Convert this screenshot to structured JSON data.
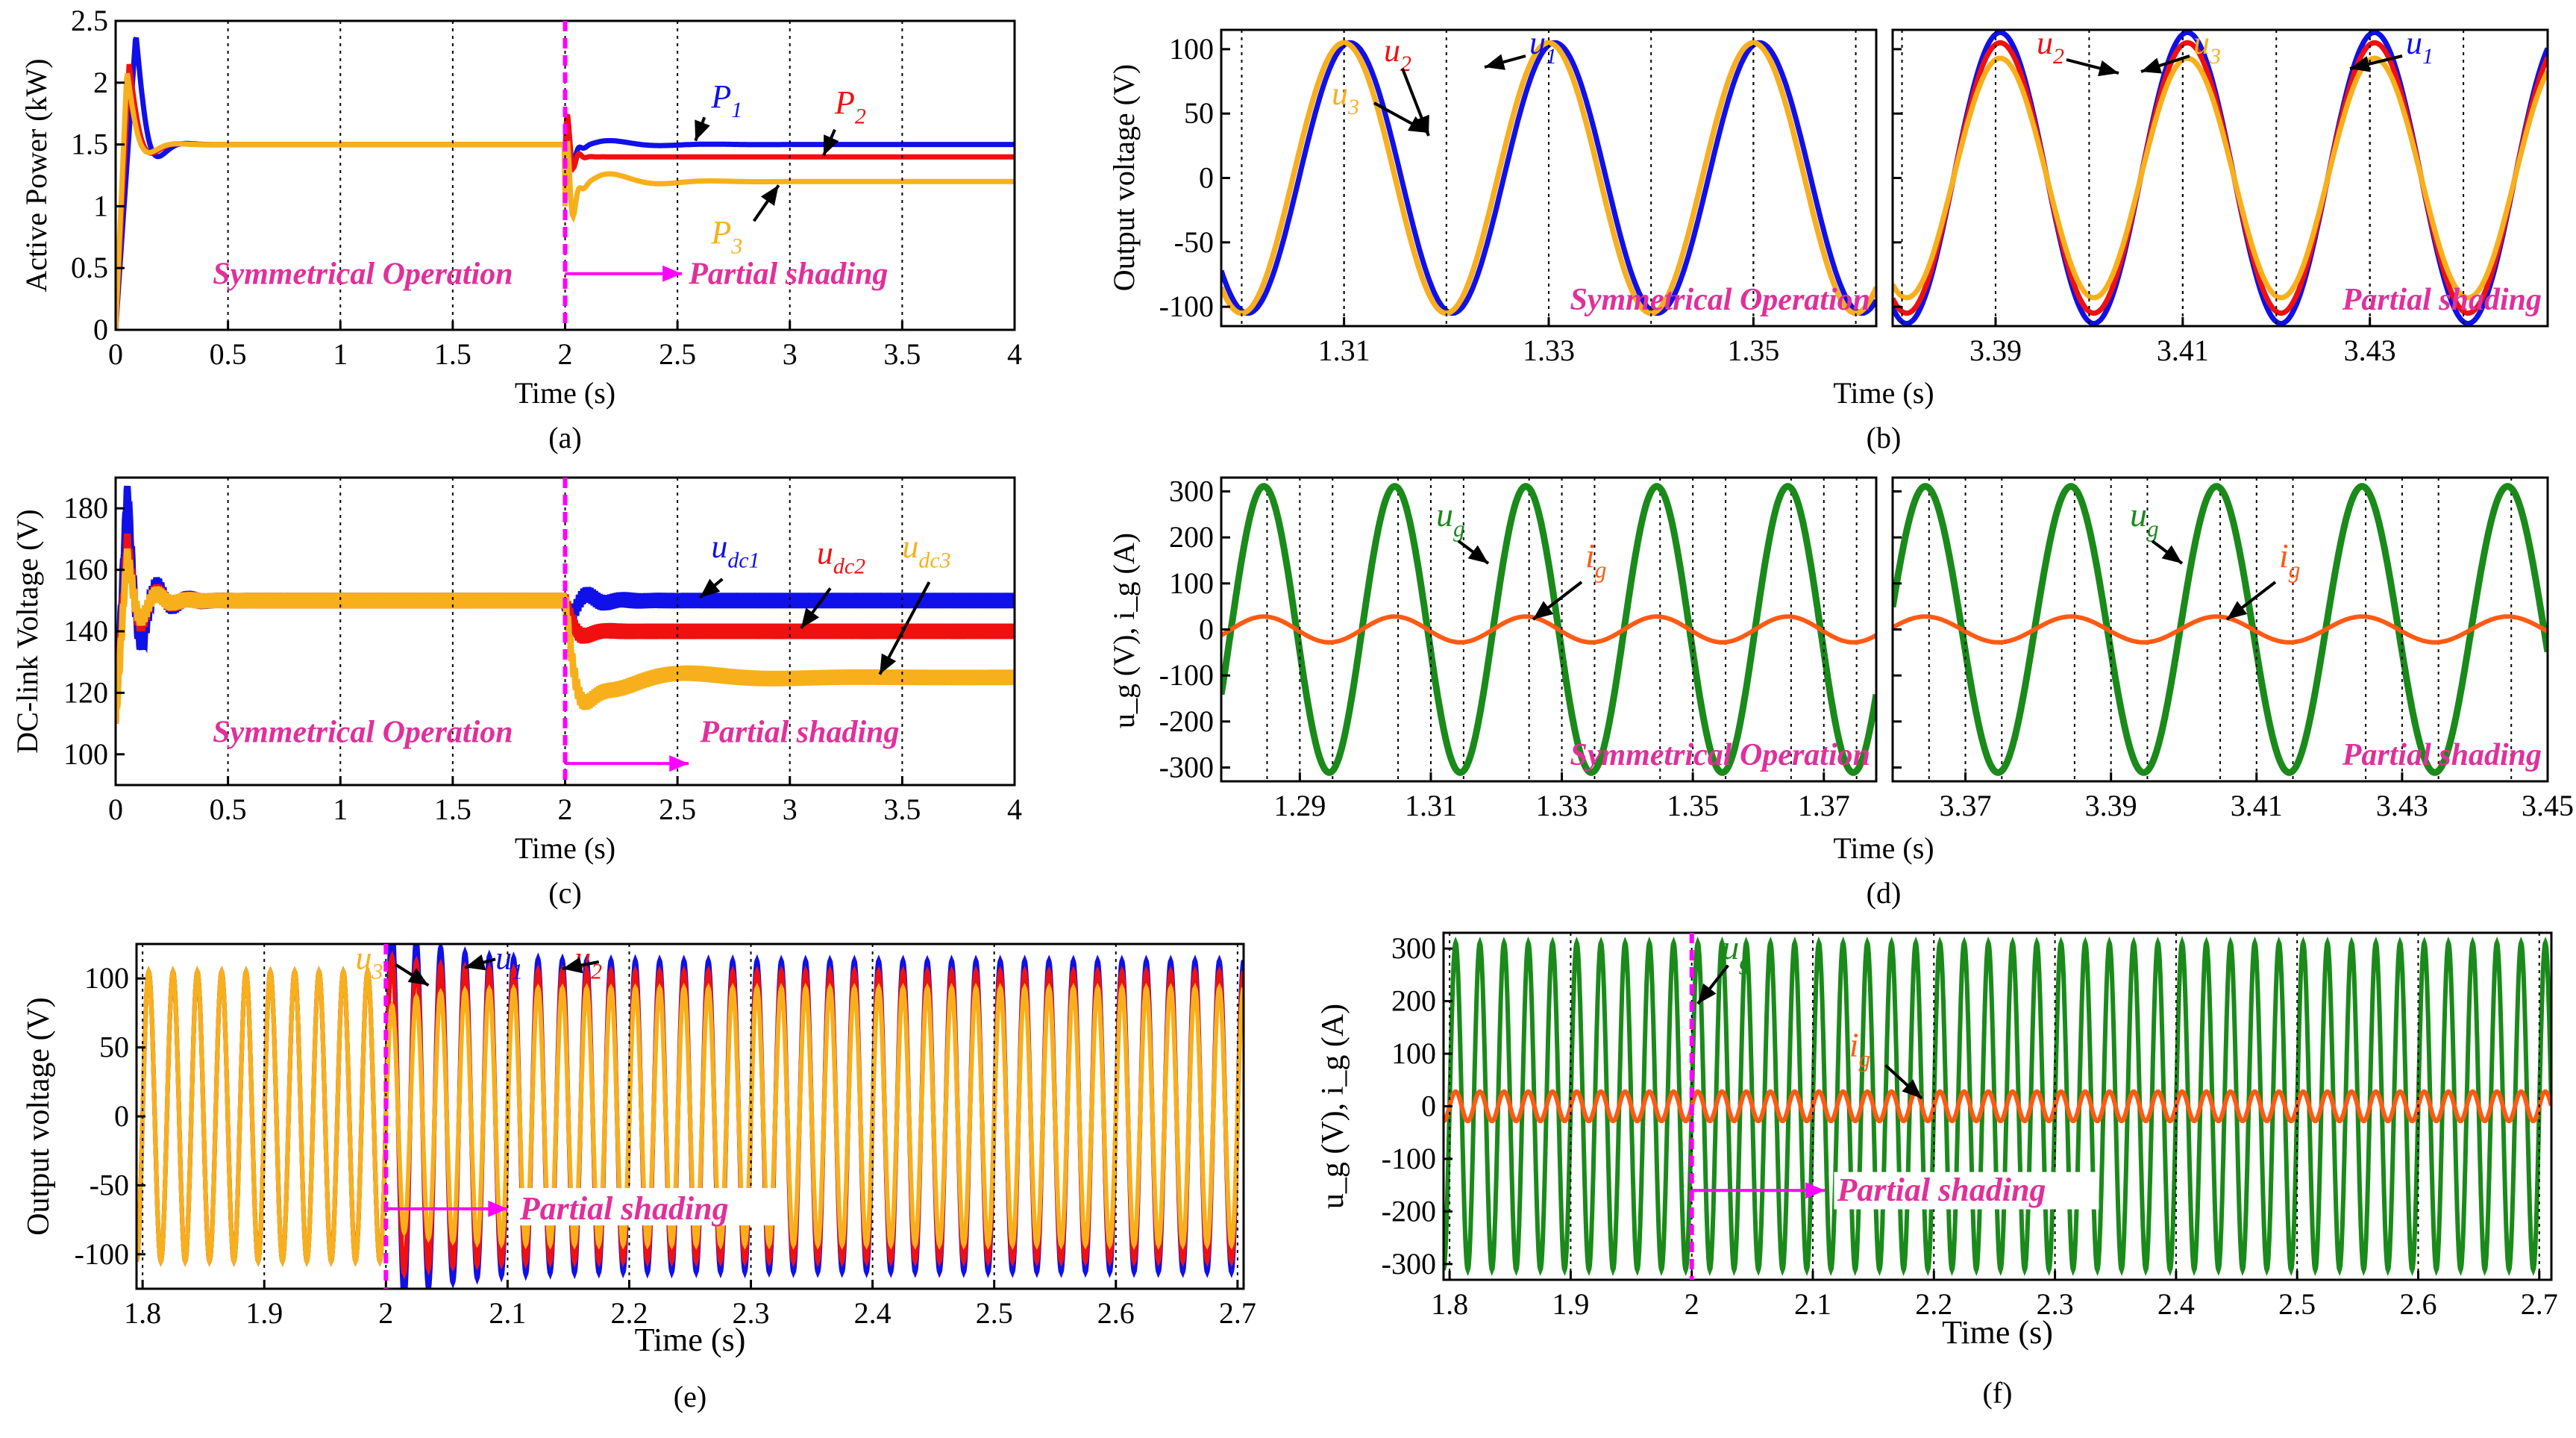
{
  "colors": {
    "blue": "#1010e8",
    "red": "#f01010",
    "orange": "#f7b01b",
    "green": "#1a8a1a",
    "ig": "#ff5a14",
    "magenta": "#ff00ff",
    "annotation": "#e0309a"
  },
  "chart_data": [
    {
      "id": "a",
      "type": "line",
      "caption": "(a)",
      "xlabel": "Time (s)",
      "ylabel": "Active Power (kW)",
      "xlim": [
        0,
        4
      ],
      "ylim": [
        0,
        2.5
      ],
      "xticks": [
        "0",
        "0.5",
        "1",
        "1.5",
        "2",
        "2.5",
        "3",
        "3.5",
        "4"
      ],
      "yticks": [
        "0",
        "0.5",
        "1",
        "1.5",
        "2",
        "2.5"
      ],
      "event_time": 2,
      "annotations": [
        "Symmetrical Operation",
        "Partial shading"
      ],
      "series": [
        {
          "label": "P",
          "sub": "1",
          "color": "blue",
          "initial": 1.5,
          "final": 1.5
        },
        {
          "label": "P",
          "sub": "2",
          "color": "red",
          "initial": 1.5,
          "final": 1.4
        },
        {
          "label": "P",
          "sub": "3",
          "color": "orange",
          "initial": 1.5,
          "final": 1.2
        }
      ]
    },
    {
      "id": "b",
      "type": "line",
      "caption": "(b)",
      "xlabel": "Time (s)",
      "ylabel": "Output voltage (V)",
      "ylim": [
        -115,
        115
      ],
      "yticks": [
        "100",
        "50",
        "0",
        "-50",
        "-100"
      ],
      "panels": [
        {
          "xlim": [
            1.298,
            1.362
          ],
          "xticks": [
            "1.31",
            "1.33",
            "1.35"
          ],
          "annotation": "Symmetrical Operation",
          "amplitudes": [
            105,
            105,
            105
          ]
        },
        {
          "xlim": [
            3.379,
            3.449
          ],
          "xticks": [
            "3.39",
            "3.41",
            "3.43"
          ],
          "annotation": "Partial shading",
          "amplitudes": [
            113,
            105,
            93
          ]
        }
      ],
      "series": [
        {
          "label": "u",
          "sub": "1",
          "color": "blue"
        },
        {
          "label": "u",
          "sub": "2",
          "color": "red"
        },
        {
          "label": "u",
          "sub": "3",
          "color": "orange"
        }
      ]
    },
    {
      "id": "c",
      "type": "line",
      "caption": "(c)",
      "xlabel": "Time (s)",
      "ylabel": "DC-link Voltage (V)",
      "xlim": [
        0,
        4
      ],
      "ylim": [
        90,
        190
      ],
      "xticks": [
        "0",
        "0.5",
        "1",
        "1.5",
        "2",
        "2.5",
        "3",
        "3.5",
        "4"
      ],
      "yticks": [
        "100",
        "120",
        "140",
        "160",
        "180"
      ],
      "event_time": 2,
      "annotations": [
        "Symmetrical Operation",
        "Partial shading"
      ],
      "series": [
        {
          "label": "u",
          "sub": "dc1",
          "color": "blue",
          "initial": 150,
          "final": 150
        },
        {
          "label": "u",
          "sub": "dc2",
          "color": "red",
          "initial": 150,
          "final": 140
        },
        {
          "label": "u",
          "sub": "dc3",
          "color": "orange",
          "initial": 150,
          "final": 125
        }
      ]
    },
    {
      "id": "d",
      "type": "line",
      "caption": "(d)",
      "xlabel": "Time (s)",
      "ylabel": "u_g (V), i_g (A)",
      "ylim": [
        -330,
        330
      ],
      "yticks": [
        "300",
        "200",
        "100",
        "0",
        "-100",
        "-200",
        "-300"
      ],
      "panels": [
        {
          "xlim": [
            1.278,
            1.378
          ],
          "xticks": [
            "1.29",
            "1.31",
            "1.33",
            "1.35",
            "1.37"
          ],
          "annotation": "Symmetrical Operation"
        },
        {
          "xlim": [
            3.36,
            3.45
          ],
          "xticks": [
            "3.37",
            "3.39",
            "3.41",
            "3.43",
            "3.45"
          ],
          "annotation": "Partial shading"
        }
      ],
      "series": [
        {
          "label": "u",
          "sub": "g",
          "color": "green",
          "amplitude": 311
        },
        {
          "label": "i",
          "sub": "g",
          "color": "ig",
          "amplitude": 28
        }
      ]
    },
    {
      "id": "e",
      "type": "line",
      "caption": "(e)",
      "xlabel": "Time (s)",
      "ylabel": "Output voltage (V)",
      "xlim": [
        1.795,
        2.705
      ],
      "ylim": [
        -125,
        125
      ],
      "xticks": [
        "1.8",
        "1.9",
        "2",
        "2.1",
        "2.2",
        "2.3",
        "2.4",
        "2.5",
        "2.6",
        "2.7"
      ],
      "yticks": [
        "100",
        "50",
        "0",
        "-50",
        "-100"
      ],
      "event_time": 2,
      "annotation": "Partial shading",
      "series": [
        {
          "label": "u",
          "sub": "1",
          "color": "blue",
          "initial": 105,
          "final": 113
        },
        {
          "label": "u",
          "sub": "2",
          "color": "red",
          "initial": 105,
          "final": 105
        },
        {
          "label": "u",
          "sub": "3",
          "color": "orange",
          "initial": 105,
          "final": 93
        }
      ]
    },
    {
      "id": "f",
      "type": "line",
      "caption": "(f)",
      "xlabel": "Time (s)",
      "ylabel": "u_g (V), i_g (A)",
      "xlim": [
        1.795,
        2.71
      ],
      "ylim": [
        -330,
        330
      ],
      "xticks": [
        "1.8",
        "1.9",
        "2",
        "2.1",
        "2.2",
        "2.3",
        "2.4",
        "2.5",
        "2.6",
        "2.7"
      ],
      "yticks": [
        "300",
        "200",
        "100",
        "0",
        "-100",
        "-200",
        "-300"
      ],
      "event_time": 2,
      "annotation": "Partial shading",
      "series": [
        {
          "label": "u",
          "sub": "g",
          "color": "green",
          "amplitude": 311
        },
        {
          "label": "i",
          "sub": "g",
          "color": "ig",
          "amplitude": 28
        }
      ]
    }
  ]
}
